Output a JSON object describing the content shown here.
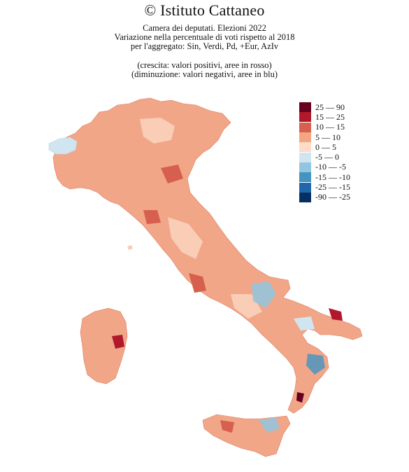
{
  "header": {
    "title": "© Istituto Cattaneo",
    "line1": "Camera dei deputati. Elezioni 2022",
    "line2": "Variazione nella percentuale di voti rispetto al 2018",
    "line3": "per l'aggregato: Sin, Verdi, Pd, +Eur, AzIv",
    "line4": "(crescita: valori positivi, aree in rosso)",
    "line5": "(diminuzione: valori negativi, aree in blu)"
  },
  "legend": [
    {
      "label": "25 — 90",
      "color": "#67001f"
    },
    {
      "label": "15 — 25",
      "color": "#b2182b"
    },
    {
      "label": "10 — 15",
      "color": "#d6604d"
    },
    {
      "label": "5 — 10",
      "color": "#f4a582"
    },
    {
      "label": "0 — 5",
      "color": "#fddbc7"
    },
    {
      "label": "-5 — 0",
      "color": "#d1e5f0"
    },
    {
      "label": "-10 — -5",
      "color": "#92c5de"
    },
    {
      "label": "-15 — -10",
      "color": "#4393c3"
    },
    {
      "label": "-25 — -15",
      "color": "#2166ac"
    },
    {
      "label": "-90 — -25",
      "color": "#053061"
    }
  ],
  "colors": {
    "base": "#f1a688",
    "light": "#f9cdb6",
    "red": "#d6604d",
    "dark": "#b2182b",
    "blue": "#92c5de",
    "lightblue": "#d1e5f0"
  }
}
